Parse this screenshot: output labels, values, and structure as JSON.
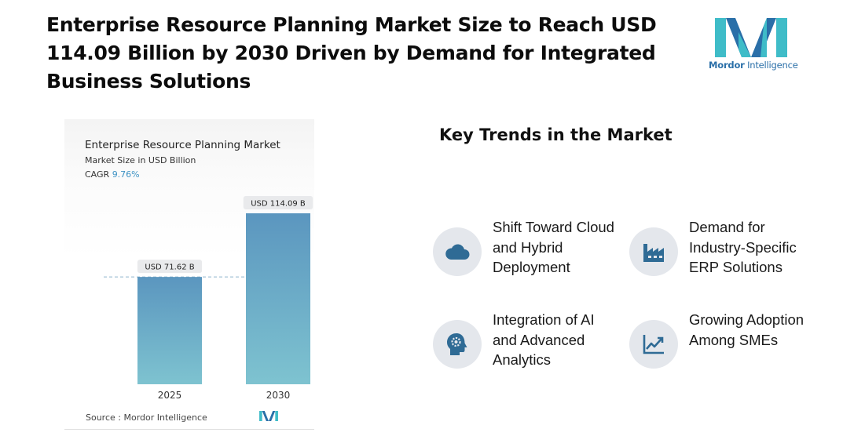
{
  "headline": "Enterprise Resource Planning Market Size to Reach USD 114.09 Billion by 2030 Driven by Demand for Integrated Business Solutions",
  "logo": {
    "brand_bold": "Mordor",
    "brand_rest": " Intelligence"
  },
  "chart_data": {
    "type": "bar",
    "title": "Enterprise Resource Planning Market",
    "subtitle": "Market Size in USD Billion",
    "cagr_label": "CAGR",
    "cagr_value": "9.76%",
    "categories": [
      "2025",
      "2030"
    ],
    "values": [
      71.62,
      114.09
    ],
    "data_labels": [
      "USD 71.62 B",
      "USD 114.09 B"
    ],
    "ylim": [
      0,
      114.09
    ],
    "grid": false,
    "reference_line": "dashed line at 2025 value",
    "colors": {
      "bar_top": "#5b96bf",
      "bar_bottom": "#7ec3d0",
      "ref_line": "#8fb5cc"
    }
  },
  "chart_source": "Source : Mordor Intelligence",
  "trends": {
    "title": "Key Trends in the Market",
    "items": [
      {
        "label": "Shift Toward Cloud and Hybrid Deployment",
        "icon": "cloud-icon"
      },
      {
        "label": "Demand for Industry-Specific ERP Solutions",
        "icon": "factory-icon"
      },
      {
        "label": "Integration of AI and Advanced Analytics",
        "icon": "ai-head-icon"
      },
      {
        "label": "Growing Adoption Among SMEs",
        "icon": "growth-chart-icon"
      }
    ]
  },
  "colors": {
    "icon_fill": "#2f6b95",
    "circle_bg": "#e4e7ec",
    "logo_teal": "#3fbcc8",
    "logo_blue": "#2a6fa8"
  }
}
